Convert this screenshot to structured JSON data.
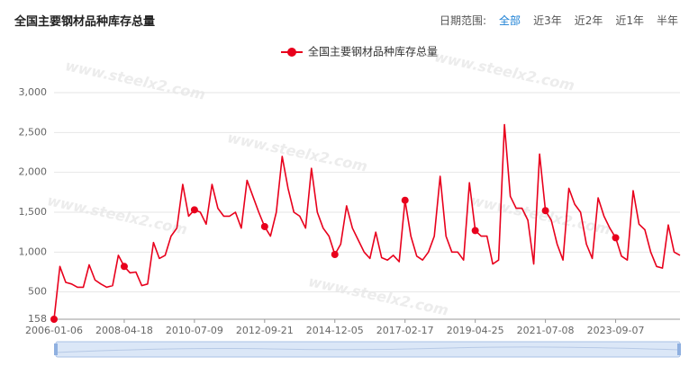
{
  "chart_data": {
    "type": "line",
    "title": "全国主要钢材品种库存总量",
    "date_range": {
      "label": "日期范围:",
      "options": [
        "全部",
        "近3年",
        "近2年",
        "近1年",
        "半年"
      ],
      "active": 0
    },
    "watermark": "www.steelx2.com",
    "categories": [
      "2006-01-06",
      null,
      null,
      null,
      null,
      null,
      null,
      null,
      null,
      null,
      null,
      null,
      "2008-04-18",
      null,
      null,
      null,
      null,
      null,
      null,
      null,
      null,
      null,
      null,
      null,
      "2010-07-09",
      null,
      null,
      null,
      null,
      null,
      null,
      null,
      null,
      null,
      null,
      null,
      "2012-09-21",
      null,
      null,
      null,
      null,
      null,
      null,
      null,
      null,
      null,
      null,
      null,
      "2014-12-05",
      null,
      null,
      null,
      null,
      null,
      null,
      null,
      null,
      null,
      null,
      null,
      "2017-02-17",
      null,
      null,
      null,
      null,
      null,
      null,
      null,
      null,
      null,
      null,
      null,
      "2019-04-25",
      null,
      null,
      null,
      null,
      null,
      null,
      null,
      null,
      null,
      null,
      null,
      "2021-07-08",
      null,
      null,
      null,
      null,
      null,
      null,
      null,
      null,
      null,
      null,
      null,
      "2023-09-07",
      null,
      null,
      null,
      null,
      null,
      null,
      null,
      null,
      null,
      null,
      null
    ],
    "series": [
      {
        "name": "全国主要钢材品种库存总量",
        "color": "#e8001c",
        "values": [
          158,
          820,
          620,
          600,
          560,
          560,
          840,
          650,
          600,
          560,
          580,
          960,
          820,
          740,
          750,
          580,
          600,
          1120,
          920,
          960,
          1200,
          1300,
          1850,
          1450,
          1530,
          1500,
          1350,
          1850,
          1550,
          1450,
          1450,
          1500,
          1300,
          1900,
          1700,
          1500,
          1320,
          1200,
          1500,
          2200,
          1800,
          1500,
          1450,
          1300,
          2050,
          1500,
          1300,
          1200,
          970,
          1100,
          1580,
          1300,
          1150,
          1000,
          920,
          1250,
          930,
          900,
          960,
          880,
          1650,
          1200,
          950,
          900,
          1000,
          1200,
          1950,
          1200,
          1000,
          1000,
          900,
          1870,
          1270,
          1200,
          1200,
          850,
          900,
          2600,
          1700,
          1550,
          1550,
          1400,
          850,
          2230,
          1520,
          1400,
          1100,
          900,
          1800,
          1600,
          1500,
          1100,
          920,
          1680,
          1450,
          1300,
          1180,
          950,
          900,
          1770,
          1350,
          1280,
          1000,
          820,
          800,
          1340,
          1000,
          960
        ]
      }
    ],
    "ylim": [
      158,
      3000
    ],
    "yticks": [
      158,
      500,
      {
        "value": 1000,
        "label": "1,000"
      },
      {
        "value": 1500,
        "label": "1,500"
      },
      {
        "value": 2000,
        "label": "2,000"
      },
      {
        "value": 2500,
        "label": "2,500"
      },
      {
        "value": 3000,
        "label": "3,000"
      }
    ],
    "grid": true
  }
}
